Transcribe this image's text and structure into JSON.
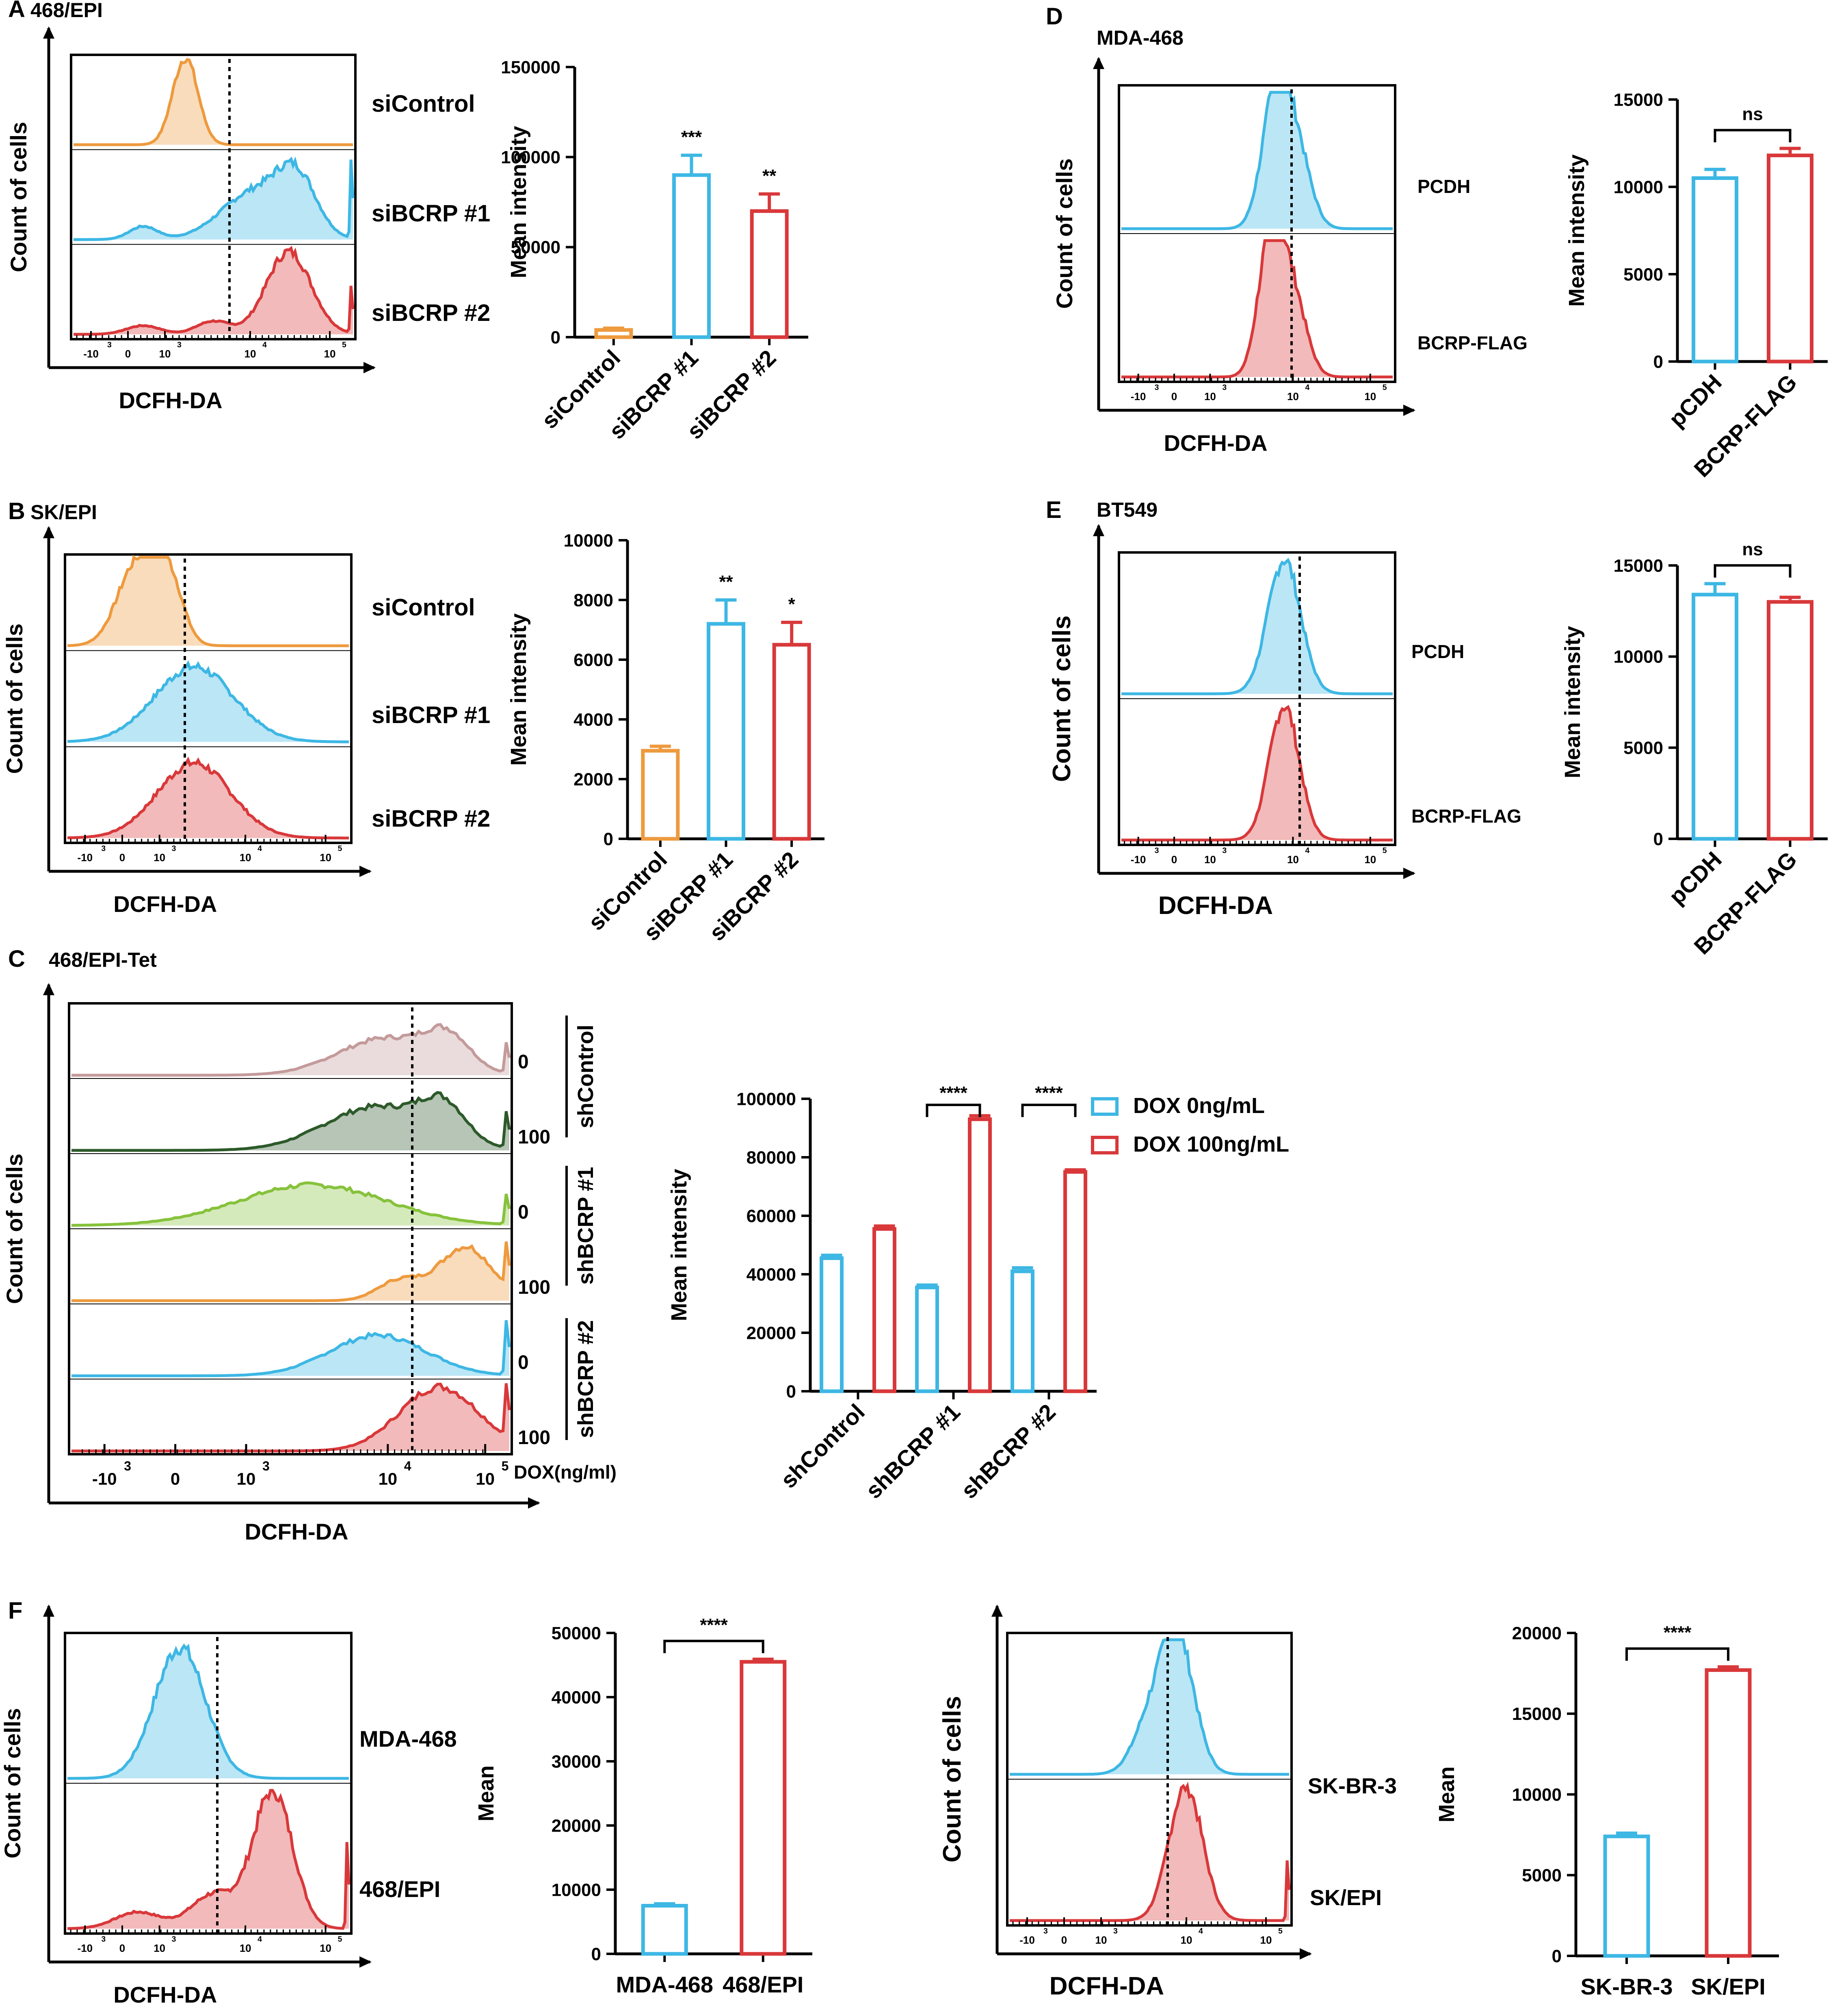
{
  "colors": {
    "orange": "#EE9A3E",
    "blue": "#3DB7E4",
    "red": "#D9383A",
    "rosy": "#C49A9A",
    "darkgreen": "#2D5A2A",
    "lightgreen": "#86C23B",
    "black": "#000000"
  },
  "panels": {
    "A": {
      "letter": "A",
      "title": "468/EPI",
      "flow": {
        "ylabel": "Count of cells",
        "xlabel": "DCFH-DA",
        "ticks": [
          "-10",
          "0",
          "10",
          "10",
          "10"
        ],
        "tick_exp": [
          "3",
          "",
          "3",
          "4",
          "5"
        ],
        "labels": [
          "siControl",
          "siBCRP #1",
          "siBCRP #2"
        ]
      }
    },
    "B": {
      "letter": "B",
      "title": "SK/EPI",
      "flow": {
        "ylabel": "Count of cells",
        "xlabel": "DCFH-DA",
        "ticks": [
          "-10",
          "0",
          "10",
          "10",
          "10"
        ],
        "tick_exp": [
          "3",
          "",
          "3",
          "4",
          "5"
        ],
        "labels": [
          "siControl",
          "siBCRP #1",
          "siBCRP #2"
        ]
      }
    },
    "C": {
      "letter": "C",
      "title": "468/EPI-Tet",
      "flow": {
        "ylabel": "Count of cells",
        "xlabel": "DCFH-DA",
        "dox_axis": "DOX(ng/ml)",
        "ticks": [
          "-10",
          "0",
          "10",
          "10",
          "10"
        ],
        "tick_exp": [
          "3",
          "",
          "3",
          "4",
          "5"
        ],
        "dox": [
          "0",
          "100",
          "0",
          "100",
          "0",
          "100"
        ],
        "groups": [
          "shControl",
          "shBCRP #1",
          "shBCRP #2"
        ]
      }
    },
    "D": {
      "letter": "D",
      "title": "MDA-468",
      "flow": {
        "ylabel": "Count of cells",
        "xlabel": "DCFH-DA",
        "ticks": [
          "-10",
          "0",
          "10",
          "10",
          "10"
        ],
        "tick_exp": [
          "3",
          "",
          "3",
          "4",
          "5"
        ],
        "labels": [
          "PCDH",
          "BCRP-FLAG"
        ]
      }
    },
    "E": {
      "letter": "E",
      "title": "BT549",
      "flow": {
        "ylabel": "Count of cells",
        "xlabel": "DCFH-DA",
        "ticks": [
          "-10",
          "0",
          "10",
          "10",
          "10"
        ],
        "tick_exp": [
          "3",
          "",
          "3",
          "4",
          "5"
        ],
        "labels": [
          "PCDH",
          "BCRP-FLAG"
        ]
      }
    },
    "F": {
      "letter": "F",
      "flow_left": {
        "ylabel": "Count of cells",
        "xlabel": "DCFH-DA",
        "ticks": [
          "-10",
          "0",
          "10",
          "10",
          "10"
        ],
        "tick_exp": [
          "3",
          "",
          "3",
          "4",
          "5"
        ],
        "labels": [
          "MDA-468",
          "468/EPI"
        ]
      },
      "flow_right": {
        "ylabel": "Count of cells",
        "xlabel": "DCFH-DA",
        "ticks": [
          "-10",
          "0",
          "10",
          "10",
          "10"
        ],
        "tick_exp": [
          "3",
          "",
          "3",
          "4",
          "5"
        ],
        "labels": [
          "SK-BR-3",
          "SK/EPI"
        ]
      }
    }
  },
  "chart_data": [
    {
      "id": "A-bar",
      "type": "bar",
      "title": "",
      "xlabel": "",
      "ylabel": "Mean intensity",
      "ylim": [
        0,
        150000
      ],
      "yticks": [
        0,
        50000,
        100000,
        150000
      ],
      "categories": [
        "siControl",
        "siBCRP #1",
        "siBCRP #2"
      ],
      "values": [
        4000,
        90000,
        70000
      ],
      "errors": [
        1000,
        11000,
        9500
      ],
      "colors": [
        "orange",
        "blue",
        "red"
      ],
      "sig": [
        "",
        "***",
        "**"
      ]
    },
    {
      "id": "B-bar",
      "type": "bar",
      "title": "",
      "xlabel": "",
      "ylabel": "Mean intensity",
      "ylim": [
        0,
        10000
      ],
      "yticks": [
        0,
        2000,
        4000,
        6000,
        8000,
        10000
      ],
      "categories": [
        "siControl",
        "siBCRP #1",
        "siBCRP #2"
      ],
      "values": [
        2950,
        7200,
        6500
      ],
      "errors": [
        150,
        800,
        750
      ],
      "colors": [
        "orange",
        "blue",
        "red"
      ],
      "sig": [
        "",
        "**",
        "*"
      ]
    },
    {
      "id": "C-bar",
      "type": "bar",
      "title": "",
      "xlabel": "",
      "ylabel": "Mean intensity",
      "ylim": [
        0,
        100000
      ],
      "yticks": [
        0,
        20000,
        40000,
        60000,
        80000,
        100000
      ],
      "categories": [
        "shControl",
        "shBCRP #1",
        "shBCRP #2"
      ],
      "series": [
        {
          "name": "DOX 0ng/mL",
          "color": "blue",
          "values": [
            45500,
            35500,
            41000
          ],
          "errors": [
            1000,
            800,
            1200
          ]
        },
        {
          "name": "DOX 100ng/mL",
          "color": "red",
          "values": [
            55500,
            93000,
            75000
          ],
          "errors": [
            1000,
            1200,
            700
          ]
        }
      ],
      "brackets": [
        {
          "group": 1,
          "label": "****"
        },
        {
          "group": 2,
          "label": "****"
        }
      ]
    },
    {
      "id": "D-bar",
      "type": "bar",
      "title": "",
      "xlabel": "",
      "ylabel": "Mean intensity",
      "ylim": [
        0,
        15000
      ],
      "yticks": [
        0,
        5000,
        10000,
        15000
      ],
      "categories": [
        "pCDH",
        "BCRP-FLAG"
      ],
      "values": [
        10500,
        11800
      ],
      "errors": [
        500,
        400
      ],
      "colors": [
        "blue",
        "red"
      ],
      "bracket": {
        "label": "ns"
      }
    },
    {
      "id": "E-bar",
      "type": "bar",
      "title": "",
      "xlabel": "",
      "ylabel": "Mean intensity",
      "ylim": [
        0,
        15000
      ],
      "yticks": [
        0,
        5000,
        10000,
        15000
      ],
      "categories": [
        "pCDH",
        "BCRP-FLAG"
      ],
      "values": [
        13400,
        13000
      ],
      "errors": [
        600,
        250
      ],
      "colors": [
        "blue",
        "red"
      ],
      "bracket": {
        "label": "ns"
      }
    },
    {
      "id": "F-bar-left",
      "type": "bar",
      "title": "",
      "xlabel": "",
      "ylabel": "Mean",
      "ylim": [
        0,
        50000
      ],
      "yticks": [
        0,
        10000,
        20000,
        30000,
        40000,
        50000
      ],
      "categories": [
        "MDA-468",
        "468/EPI"
      ],
      "values": [
        7500,
        45500
      ],
      "errors": [
        300,
        400
      ],
      "colors": [
        "blue",
        "red"
      ],
      "bracket": {
        "label": "****"
      }
    },
    {
      "id": "F-bar-right",
      "type": "bar",
      "title": "",
      "xlabel": "",
      "ylabel": "Mean",
      "ylim": [
        0,
        20000
      ],
      "yticks": [
        0,
        5000,
        10000,
        15000,
        20000
      ],
      "categories": [
        "SK-BR-3",
        "SK/EPI"
      ],
      "values": [
        7400,
        17700
      ],
      "errors": [
        200,
        200
      ],
      "colors": [
        "blue",
        "red"
      ],
      "bracket": {
        "label": "****"
      }
    }
  ]
}
